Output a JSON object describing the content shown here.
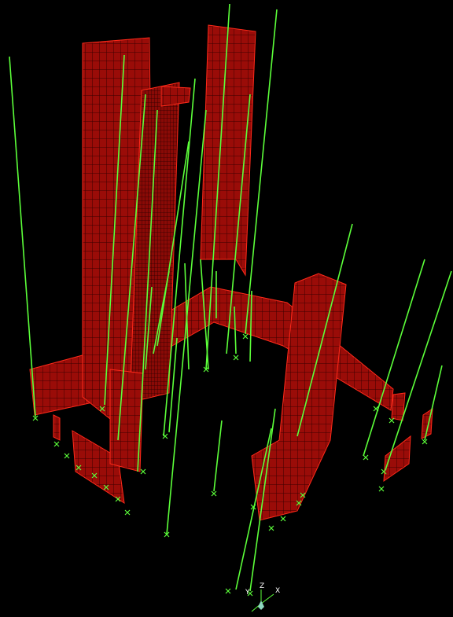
{
  "axis_triad": {
    "labels": [
      "Z",
      "Y",
      "X"
    ]
  }
}
